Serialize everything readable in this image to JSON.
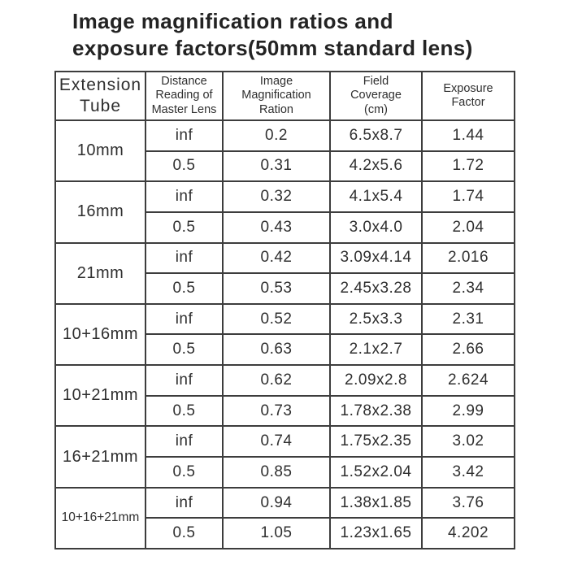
{
  "title": {
    "line1": "Image magnification ratios and",
    "line2": "exposure factors(50mm standard lens)"
  },
  "colors": {
    "background": "#ffffff",
    "text": "#2f2f2f",
    "border": "#3d3d3d"
  },
  "table": {
    "headers": [
      "Extension\nTube",
      "Distance\nReading of\nMaster Lens",
      "Image\nMagnification\nRation",
      "Field\nCoverage\n(cm)",
      "Exposure\nFactor"
    ],
    "groups": [
      {
        "tube": "10mm",
        "rows": [
          {
            "distance": "inf",
            "magnification": "0.2",
            "coverage": "6.5x8.7",
            "exposure": "1.44"
          },
          {
            "distance": "0.5",
            "magnification": "0.31",
            "coverage": "4.2x5.6",
            "exposure": "1.72"
          }
        ]
      },
      {
        "tube": "16mm",
        "rows": [
          {
            "distance": "inf",
            "magnification": "0.32",
            "coverage": "4.1x5.4",
            "exposure": "1.74"
          },
          {
            "distance": "0.5",
            "magnification": "0.43",
            "coverage": "3.0x4.0",
            "exposure": "2.04"
          }
        ]
      },
      {
        "tube": "21mm",
        "rows": [
          {
            "distance": "inf",
            "magnification": "0.42",
            "coverage": "3.09x4.14",
            "exposure": "2.016"
          },
          {
            "distance": "0.5",
            "magnification": "0.53",
            "coverage": "2.45x3.28",
            "exposure": "2.34"
          }
        ]
      },
      {
        "tube": "10+16mm",
        "rows": [
          {
            "distance": "inf",
            "magnification": "0.52",
            "coverage": "2.5x3.3",
            "exposure": "2.31"
          },
          {
            "distance": "0.5",
            "magnification": "0.63",
            "coverage": "2.1x2.7",
            "exposure": "2.66"
          }
        ]
      },
      {
        "tube": "10+21mm",
        "rows": [
          {
            "distance": "inf",
            "magnification": "0.62",
            "coverage": "2.09x2.8",
            "exposure": "2.624"
          },
          {
            "distance": "0.5",
            "magnification": "0.73",
            "coverage": "1.78x2.38",
            "exposure": "2.99"
          }
        ]
      },
      {
        "tube": "16+21mm",
        "rows": [
          {
            "distance": "inf",
            "magnification": "0.74",
            "coverage": "1.75x2.35",
            "exposure": "3.02"
          },
          {
            "distance": "0.5",
            "magnification": "0.85",
            "coverage": "1.52x2.04",
            "exposure": "3.42"
          }
        ]
      },
      {
        "tube": "10+16+21mm",
        "rows": [
          {
            "distance": "inf",
            "magnification": "0.94",
            "coverage": "1.38x1.85",
            "exposure": "3.76"
          },
          {
            "distance": "0.5",
            "magnification": "1.05",
            "coverage": "1.23x1.65",
            "exposure": "4.202"
          }
        ]
      }
    ]
  }
}
